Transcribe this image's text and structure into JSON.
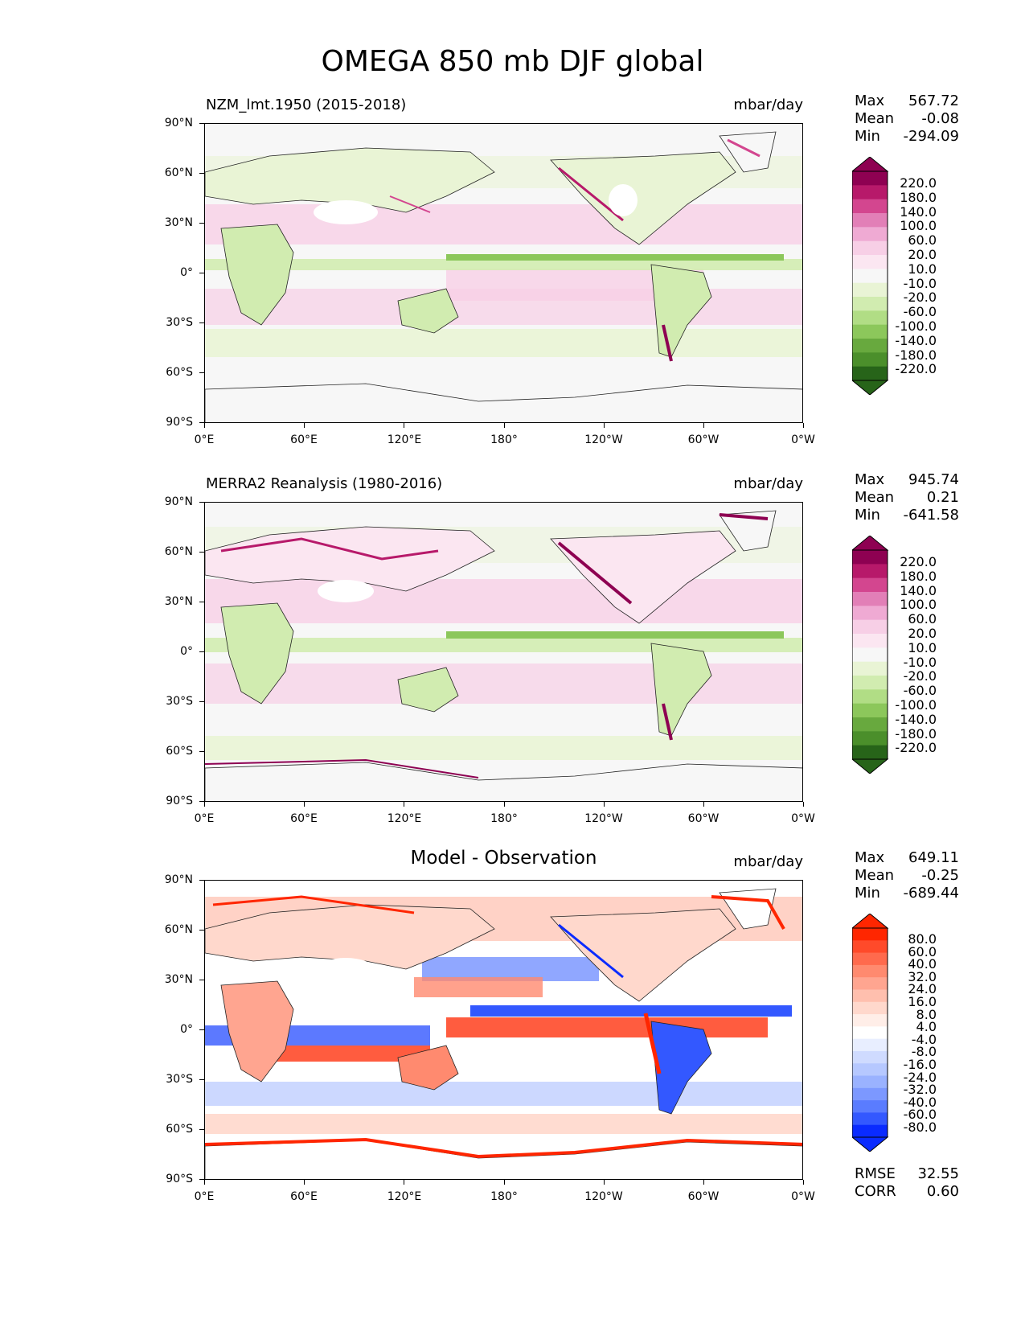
{
  "title": "OMEGA 850 mb DJF global",
  "units": "mbar/day",
  "axes": {
    "lat_labels": [
      "90°N",
      "60°N",
      "30°N",
      "0°",
      "30°S",
      "60°S",
      "90°S"
    ],
    "lon_labels": [
      "0°E",
      "60°E",
      "120°E",
      "180°",
      "120°W",
      "60°W",
      "0°W"
    ]
  },
  "panels": [
    {
      "title": "NZM_lmt.1950 (2015-2018)",
      "units": "mbar/day",
      "stats": {
        "max_label": "Max",
        "max": "567.72",
        "mean_label": "Mean",
        "mean": "-0.08",
        "min_label": "Min",
        "min": "-294.09"
      },
      "colorbar_labels": [
        "220.0",
        "180.0",
        "140.0",
        "100.0",
        "60.0",
        "20.0",
        "10.0",
        "-10.0",
        "-20.0",
        "-60.0",
        "-100.0",
        "-140.0",
        "-180.0",
        "-220.0"
      ]
    },
    {
      "title": "MERRA2 Reanalysis (1980-2016)",
      "units": "mbar/day",
      "stats": {
        "max_label": "Max",
        "max": "945.74",
        "mean_label": "Mean",
        "mean": "0.21",
        "min_label": "Min",
        "min": "-641.58"
      },
      "colorbar_labels": [
        "220.0",
        "180.0",
        "140.0",
        "100.0",
        "60.0",
        "20.0",
        "10.0",
        "-10.0",
        "-20.0",
        "-60.0",
        "-100.0",
        "-140.0",
        "-180.0",
        "-220.0"
      ]
    },
    {
      "title": "Model - Observation",
      "units": "mbar/day",
      "stats": {
        "max_label": "Max",
        "max": "649.11",
        "mean_label": "Mean",
        "mean": "-0.25",
        "min_label": "Min",
        "min": "-689.44"
      },
      "colorbar_labels": [
        "80.0",
        "60.0",
        "40.0",
        "32.0",
        "24.0",
        "16.0",
        "8.0",
        "4.0",
        "-4.0",
        "-8.0",
        "-16.0",
        "-24.0",
        "-32.0",
        "-40.0",
        "-60.0",
        "-80.0"
      ],
      "rmse_label": "RMSE",
      "rmse": "32.55",
      "corr_label": "CORR",
      "corr": "0.60"
    }
  ],
  "colors": {
    "piyg": [
      "#8e0152",
      "#b7196a",
      "#d3468f",
      "#e27fb7",
      "#efaad3",
      "#f7cfe6",
      "#fbe6f1",
      "#f7f7f7",
      "#e9f4d5",
      "#d1ecb0",
      "#b1dd85",
      "#8cc75b",
      "#68a93e",
      "#4b8f2b",
      "#276419"
    ],
    "bwr": [
      "#ff2600",
      "#ff4a2a",
      "#ff6a4d",
      "#ff8a6f",
      "#ffa590",
      "#ffbfae",
      "#ffd8cc",
      "#ffeee8",
      "#ffffff",
      "#e8eeff",
      "#cfdbff",
      "#b6c8ff",
      "#9ab2ff",
      "#7c98ff",
      "#5a7cff",
      "#3358ff",
      "#0a2bff"
    ]
  }
}
